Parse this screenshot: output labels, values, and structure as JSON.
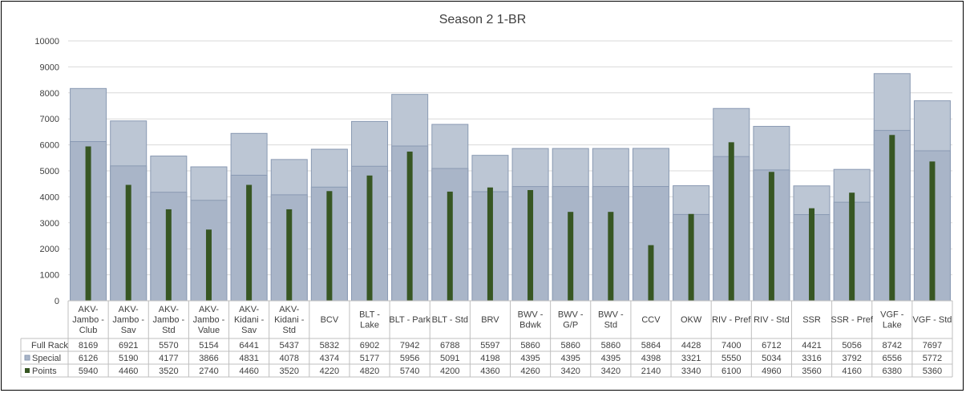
{
  "chart_data": {
    "type": "bar",
    "title": "Season 2 1-BR",
    "xlabel": "",
    "ylabel": "",
    "ylim": [
      0,
      10000
    ],
    "yticks": [
      0,
      1000,
      2000,
      3000,
      4000,
      5000,
      6000,
      7000,
      8000,
      9000,
      10000
    ],
    "grid": true,
    "legend": "data-table-left",
    "categories": [
      [
        "AKV-",
        "Jambo -",
        "Club"
      ],
      [
        "AKV-",
        "Jambo -",
        "Sav"
      ],
      [
        "AKV-",
        "Jambo -",
        "Std"
      ],
      [
        "AKV-",
        "Jambo -",
        "Value"
      ],
      [
        "AKV-",
        "Kidani -",
        "Sav"
      ],
      [
        "AKV-",
        "Kidani -",
        "Std"
      ],
      [
        "BCV"
      ],
      [
        "BLT -",
        "Lake"
      ],
      [
        "BLT - Park"
      ],
      [
        "BLT - Std"
      ],
      [
        "BRV"
      ],
      [
        "BWV -",
        "Bdwk"
      ],
      [
        "BWV -",
        "G/P"
      ],
      [
        "BWV -",
        "Std"
      ],
      [
        "CCV"
      ],
      [
        "OKW"
      ],
      [
        "RIV - Pref"
      ],
      [
        "RIV - Std"
      ],
      [
        "SSR"
      ],
      [
        "SSR - Pref"
      ],
      [
        "VGF -",
        "Lake"
      ],
      [
        "VGF - Std"
      ]
    ],
    "series": [
      {
        "name": "Full Rack",
        "color": "#bcc6d4",
        "values": [
          8169,
          6921,
          5570,
          5154,
          6441,
          5437,
          5832,
          6902,
          7942,
          6788,
          5597,
          5860,
          5860,
          5860,
          5864,
          4428,
          7400,
          6712,
          4421,
          5056,
          8742,
          7697
        ]
      },
      {
        "name": "Special",
        "color": "#a9b5c8",
        "values": [
          6126,
          5190,
          4177,
          3866,
          4831,
          4078,
          4374,
          5177,
          5956,
          5091,
          4198,
          4395,
          4395,
          4395,
          4398,
          3321,
          5550,
          5034,
          3316,
          3792,
          6556,
          5772
        ]
      },
      {
        "name": "Points",
        "color": "#375623",
        "values": [
          5940,
          4460,
          3520,
          2740,
          4460,
          3520,
          4220,
          4820,
          5740,
          4200,
          4360,
          4260,
          3420,
          3420,
          2140,
          3340,
          6100,
          4960,
          3560,
          4160,
          6380,
          5360
        ]
      }
    ]
  }
}
